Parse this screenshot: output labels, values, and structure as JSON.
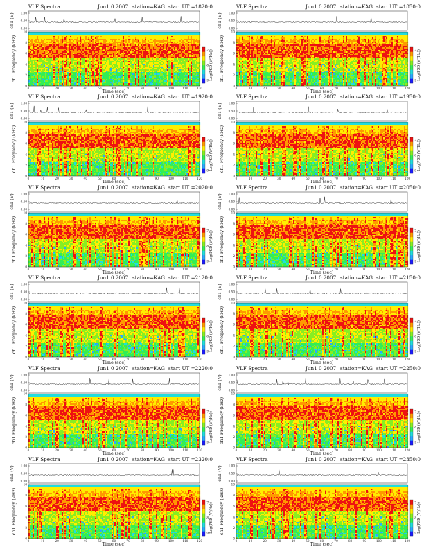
{
  "chart_data": [
    {
      "type": "heatmap",
      "title": "VLF Spectra",
      "date": "Jun1 0 2007",
      "station": "station=KAG",
      "start": "start UT =1820:0",
      "ylabel_top": "ch1 (V)",
      "ylabel_main": "ch1 Frequency (kHz)",
      "colorbar_label": "Log(PSD (V²/Hz))",
      "xlabel": "Time (sec)",
      "xlim": [
        0,
        120
      ],
      "ylim": [
        0,
        10
      ],
      "xticks": [
        0,
        10,
        20,
        30,
        40,
        50,
        60,
        70,
        80,
        90,
        100,
        110,
        120
      ],
      "yticks": [
        0,
        2,
        4,
        6,
        8,
        10
      ],
      "top_yticks": [
        "0.00",
        "0.50",
        "1.00"
      ],
      "colorbar_ticks": [
        -7,
        -8,
        -9
      ]
    },
    {
      "type": "heatmap",
      "title": "VLF Spectra",
      "date": "Jun1 0 2007",
      "station": "station=KAG",
      "start": "start UT =1850:0",
      "ylabel_top": "ch1 (V)",
      "ylabel_main": "ch1 Frequency (kHz)",
      "colorbar_label": "Log(PSD (V²/Hz))",
      "xlabel": "Time (sec)",
      "xlim": [
        0,
        120
      ],
      "ylim": [
        0,
        10
      ],
      "xticks": [
        0,
        10,
        20,
        30,
        40,
        50,
        60,
        70,
        80,
        90,
        100,
        110,
        120
      ],
      "yticks": [
        0,
        2,
        4,
        6,
        8,
        10
      ],
      "top_yticks": [
        "0.00",
        "0.50",
        "1.00"
      ],
      "colorbar_ticks": [
        -7,
        -8,
        -9
      ]
    },
    {
      "type": "heatmap",
      "title": "VLF Spectra",
      "date": "Jun1 0 2007",
      "station": "station=KAG",
      "start": "start UT =1920:0",
      "ylabel_top": "ch1 (V)",
      "ylabel_main": "ch1 Frequency (kHz)",
      "colorbar_label": "Log(PSD (V²/Hz))",
      "xlabel": "Time (sec)",
      "xlim": [
        0,
        120
      ],
      "ylim": [
        0,
        10
      ],
      "xticks": [
        0,
        10,
        20,
        30,
        40,
        50,
        60,
        70,
        80,
        90,
        100,
        110,
        120
      ],
      "yticks": [
        0,
        2,
        4,
        6,
        8,
        10
      ],
      "top_yticks": [
        "0.00",
        "0.50",
        "1.00"
      ],
      "colorbar_ticks": [
        -7,
        -8,
        -9
      ]
    },
    {
      "type": "heatmap",
      "title": "VLF Spectra",
      "date": "Jun1 0 2007",
      "station": "station=KAG",
      "start": "start UT =1950:0",
      "ylabel_top": "ch1 (V)",
      "ylabel_main": "ch1 Frequency (kHz)",
      "colorbar_label": "Log(PSD (V²/Hz))",
      "xlabel": "Time (sec)",
      "xlim": [
        0,
        120
      ],
      "ylim": [
        0,
        10
      ],
      "xticks": [
        0,
        10,
        20,
        30,
        40,
        50,
        60,
        70,
        80,
        90,
        100,
        110,
        120
      ],
      "yticks": [
        0,
        2,
        4,
        6,
        8,
        10
      ],
      "top_yticks": [
        "0.00",
        "0.50",
        "1.00"
      ],
      "colorbar_ticks": [
        -7,
        -8,
        -9
      ]
    },
    {
      "type": "heatmap",
      "title": "VLF Spectra",
      "date": "Jun1 0 2007",
      "station": "station=KAG",
      "start": "start UT =2020:0",
      "ylabel_top": "ch1 (V)",
      "ylabel_main": "ch1 Frequency (kHz)",
      "colorbar_label": "Log(PSD (V²/Hz))",
      "xlabel": "Time (sec)",
      "xlim": [
        0,
        120
      ],
      "ylim": [
        0,
        10
      ],
      "xticks": [
        0,
        10,
        20,
        30,
        40,
        50,
        60,
        70,
        80,
        90,
        100,
        110,
        120
      ],
      "yticks": [
        0,
        2,
        4,
        6,
        8,
        10
      ],
      "top_yticks": [
        "0.00",
        "0.50",
        "1.00"
      ],
      "colorbar_ticks": [
        -7,
        -8,
        -9
      ]
    },
    {
      "type": "heatmap",
      "title": "VLF Spectra",
      "date": "Jun1 0 2007",
      "station": "station=KAG",
      "start": "start UT =2050:0",
      "ylabel_top": "ch1 (V)",
      "ylabel_main": "ch1 Frequency (kHz)",
      "colorbar_label": "Log(PSD (V²/Hz))",
      "xlabel": "Time (sec)",
      "xlim": [
        0,
        120
      ],
      "ylim": [
        0,
        10
      ],
      "xticks": [
        0,
        10,
        20,
        30,
        40,
        50,
        60,
        70,
        80,
        90,
        100,
        110,
        120
      ],
      "yticks": [
        0,
        2,
        4,
        6,
        8,
        10
      ],
      "top_yticks": [
        "0.00",
        "0.50",
        "1.00"
      ],
      "colorbar_ticks": [
        -7,
        -8,
        -9
      ]
    },
    {
      "type": "heatmap",
      "title": "VLF Spectra",
      "date": "Jun1 0 2007",
      "station": "station=KAG",
      "start": "start UT =2120:0",
      "ylabel_top": "ch1 (V)",
      "ylabel_main": "ch1 Frequency (kHz)",
      "colorbar_label": "Log(PSD (V²/Hz))",
      "xlabel": "Time (sec)",
      "xlim": [
        0,
        120
      ],
      "ylim": [
        0,
        10
      ],
      "xticks": [
        0,
        10,
        20,
        30,
        40,
        50,
        60,
        70,
        80,
        90,
        100,
        110,
        120
      ],
      "yticks": [
        0,
        2,
        4,
        6,
        8,
        10
      ],
      "top_yticks": [
        "0.00",
        "0.50",
        "1.00"
      ],
      "colorbar_ticks": [
        -7,
        -8,
        -9
      ]
    },
    {
      "type": "heatmap",
      "title": "VLF Spectra",
      "date": "Jun1 0 2007",
      "station": "station=KAG",
      "start": "start UT =2150:0",
      "ylabel_top": "ch1 (V)",
      "ylabel_main": "ch1 Frequency (kHz)",
      "colorbar_label": "Log(PSD (V²/Hz))",
      "xlabel": "Time (sec)",
      "xlim": [
        0,
        120
      ],
      "ylim": [
        0,
        10
      ],
      "xticks": [
        0,
        10,
        20,
        30,
        40,
        50,
        60,
        70,
        80,
        90,
        100,
        110,
        120
      ],
      "yticks": [
        0,
        2,
        4,
        6,
        8,
        10
      ],
      "top_yticks": [
        "0.00",
        "0.50",
        "1.00"
      ],
      "colorbar_ticks": [
        -7,
        -8,
        -9
      ]
    },
    {
      "type": "heatmap",
      "title": "VLF Spectra",
      "date": "Jun1 0 2007",
      "station": "station=KAG",
      "start": "start UT =2220:0",
      "ylabel_top": "ch1 (V)",
      "ylabel_main": "ch1 Frequency (kHz)",
      "colorbar_label": "Log(PSD (V²/Hz))",
      "xlabel": "Time (sec)",
      "xlim": [
        0,
        120
      ],
      "ylim": [
        0,
        10
      ],
      "xticks": [
        0,
        10,
        20,
        30,
        40,
        50,
        60,
        70,
        80,
        90,
        100,
        110,
        120
      ],
      "yticks": [
        0,
        2,
        4,
        6,
        8,
        10
      ],
      "top_yticks": [
        "0.00",
        "0.50",
        "1.00"
      ],
      "colorbar_ticks": [
        -7,
        -8,
        -9
      ]
    },
    {
      "type": "heatmap",
      "title": "VLF Spectra",
      "date": "Jun1 0 2007",
      "station": "station=KAG",
      "start": "start UT =2250:0",
      "ylabel_top": "ch1 (V)",
      "ylabel_main": "ch1 Frequency (kHz)",
      "colorbar_label": "Log(PSD (V²/Hz))",
      "xlabel": "Time (sec)",
      "xlim": [
        0,
        120
      ],
      "ylim": [
        0,
        10
      ],
      "xticks": [
        0,
        10,
        20,
        30,
        40,
        50,
        60,
        70,
        80,
        90,
        100,
        110,
        120
      ],
      "yticks": [
        0,
        2,
        4,
        6,
        8,
        10
      ],
      "top_yticks": [
        "0.00",
        "0.50",
        "1.00"
      ],
      "colorbar_ticks": [
        -7,
        -8,
        -9
      ]
    },
    {
      "type": "heatmap",
      "title": "VLF Spectra",
      "date": "Jun1 0 2007",
      "station": "station=KAG",
      "start": "start UT =2320:0",
      "ylabel_top": "ch1 (V)",
      "ylabel_main": "ch1 Frequency (kHz)",
      "colorbar_label": "Log(PSD (V²/Hz))",
      "xlabel": "Time (sec)",
      "xlim": [
        0,
        120
      ],
      "ylim": [
        0,
        10
      ],
      "xticks": [
        0,
        10,
        20,
        30,
        40,
        50,
        60,
        70,
        80,
        90,
        100,
        110,
        120
      ],
      "yticks": [
        0,
        2,
        4,
        6,
        8,
        10
      ],
      "top_yticks": [
        "0.00",
        "0.50",
        "1.00"
      ],
      "colorbar_ticks": [
        -7,
        -8,
        -9
      ]
    },
    {
      "type": "heatmap",
      "title": "VLF Spectra",
      "date": "Jun1 0 2007",
      "station": "station=KAG",
      "start": "start UT =2350:0",
      "ylabel_top": "ch1 (V)",
      "ylabel_main": "ch1 Frequency (kHz)",
      "colorbar_label": "Log(PSD (V²/Hz))",
      "xlabel": "Time (sec)",
      "xlim": [
        0,
        120
      ],
      "ylim": [
        0,
        10
      ],
      "xticks": [
        0,
        10,
        20,
        30,
        40,
        50,
        60,
        70,
        80,
        90,
        100,
        110,
        120
      ],
      "yticks": [
        0,
        2,
        4,
        6,
        8,
        10
      ],
      "top_yticks": [
        "0.00",
        "0.50",
        "1.00"
      ],
      "colorbar_ticks": [
        -7,
        -8,
        -9
      ]
    }
  ],
  "colormap": [
    "#1a1aff",
    "#2aa8ff",
    "#22dddd",
    "#33ee55",
    "#88ee22",
    "#ffee00",
    "#ff9900",
    "#ee1111"
  ]
}
